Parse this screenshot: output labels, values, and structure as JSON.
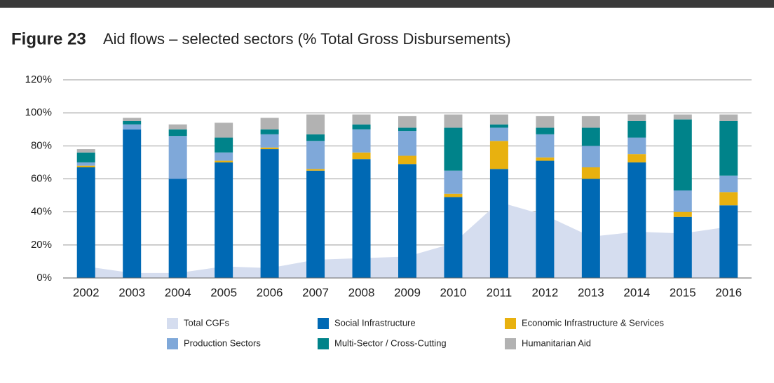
{
  "chart_data": {
    "type": "stacked_bar_area",
    "title": "Figure 23",
    "subtitle": "Aid flows – selected sectors (% Total Gross Disbursements)",
    "categories": [
      "2002",
      "2003",
      "2004",
      "2005",
      "2006",
      "2007",
      "2008",
      "2009",
      "2010",
      "2011",
      "2012",
      "2013",
      "2014",
      "2015",
      "2016"
    ],
    "area": {
      "name": "Total CGFs",
      "color": "#d5ddef",
      "values": [
        7,
        3,
        3,
        7,
        6,
        11,
        12,
        13,
        21,
        46,
        38,
        25,
        28,
        27,
        31
      ]
    },
    "series": [
      {
        "name": "Social Infrastructure",
        "color": "#0069b4",
        "values": [
          67,
          90,
          60,
          70,
          78,
          65,
          72,
          69,
          49,
          66,
          71,
          60,
          70,
          37,
          44
        ]
      },
      {
        "name": "Economic Infrastructure & Services",
        "color": "#e8b10f",
        "values": [
          1,
          0,
          0,
          1,
          1,
          1,
          4,
          5,
          2,
          17,
          2,
          7,
          5,
          3,
          8
        ]
      },
      {
        "name": "Production Sectors",
        "color": "#7fa8d9",
        "values": [
          2,
          3,
          26,
          5,
          8,
          17,
          14,
          15,
          14,
          8,
          14,
          13,
          10,
          13,
          10
        ]
      },
      {
        "name": "Multi-Sector / Cross-Cutting",
        "color": "#00838a",
        "values": [
          6,
          2,
          4,
          9,
          3,
          4,
          3,
          2,
          26,
          2,
          4,
          11,
          10,
          43,
          33
        ]
      },
      {
        "name": "Humanitarian Aid",
        "color": "#b2b2b2",
        "values": [
          2,
          2,
          3,
          9,
          7,
          12,
          6,
          7,
          8,
          6,
          7,
          7,
          4,
          3,
          4
        ]
      }
    ],
    "ylim": [
      0,
      120
    ],
    "yticks": [
      {
        "value": 0,
        "label": "0%"
      },
      {
        "value": 20,
        "label": "20%"
      },
      {
        "value": 40,
        "label": "40%"
      },
      {
        "value": 60,
        "label": "60%"
      },
      {
        "value": 80,
        "label": "80%"
      },
      {
        "value": 100,
        "label": "100%"
      },
      {
        "value": 120,
        "label": "120%"
      }
    ],
    "grid": true
  }
}
